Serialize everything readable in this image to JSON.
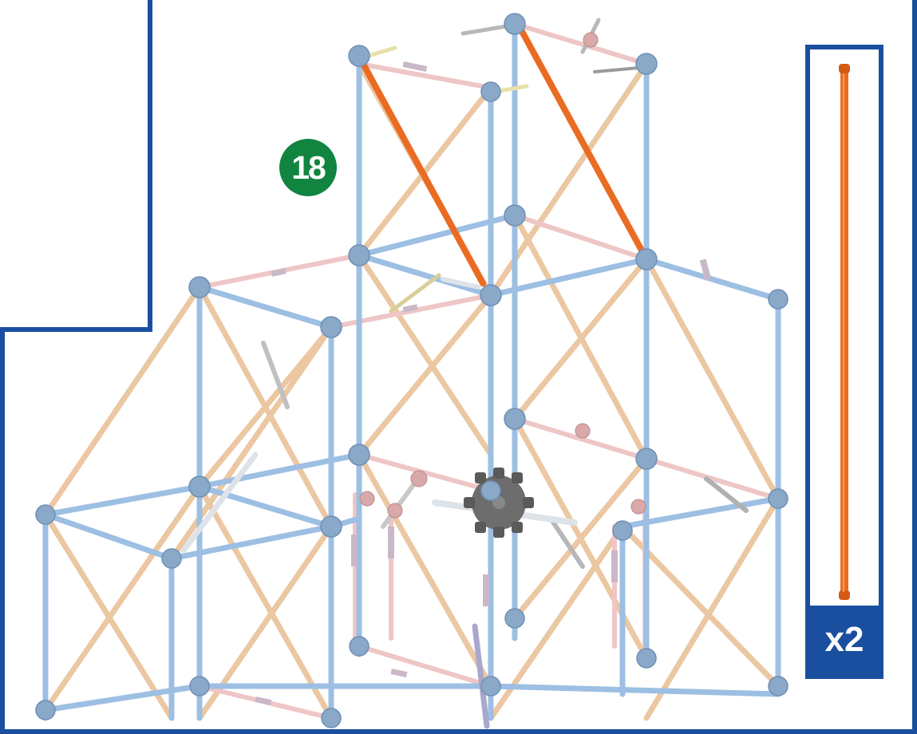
{
  "step": {
    "number": "18"
  },
  "parts": {
    "quantity": "x2",
    "rod_color": "#ea6b22",
    "rod_name": "orange-rod-icon"
  },
  "colors": {
    "frame": "#1a4fa0",
    "blue_rod": "#9dbfe3",
    "tan_rod": "#ebc7a2",
    "pink_rod": "#eec6c6",
    "highlight_rod": "#ea6b22",
    "connector": "#8aa8c8",
    "badge": "#118540"
  }
}
